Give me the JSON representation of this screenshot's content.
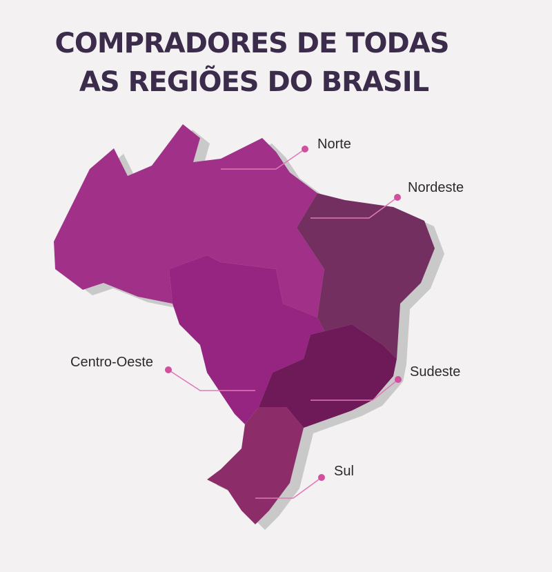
{
  "title": {
    "line1": "COMPRADORES DE TODAS",
    "line2": "AS REGIÕES DO BRASIL"
  },
  "regions": [
    {
      "label": "Norte"
    },
    {
      "label": "Nordeste"
    },
    {
      "label": "Centro-Oeste"
    },
    {
      "label": "Sudeste"
    },
    {
      "label": "Sul"
    }
  ]
}
